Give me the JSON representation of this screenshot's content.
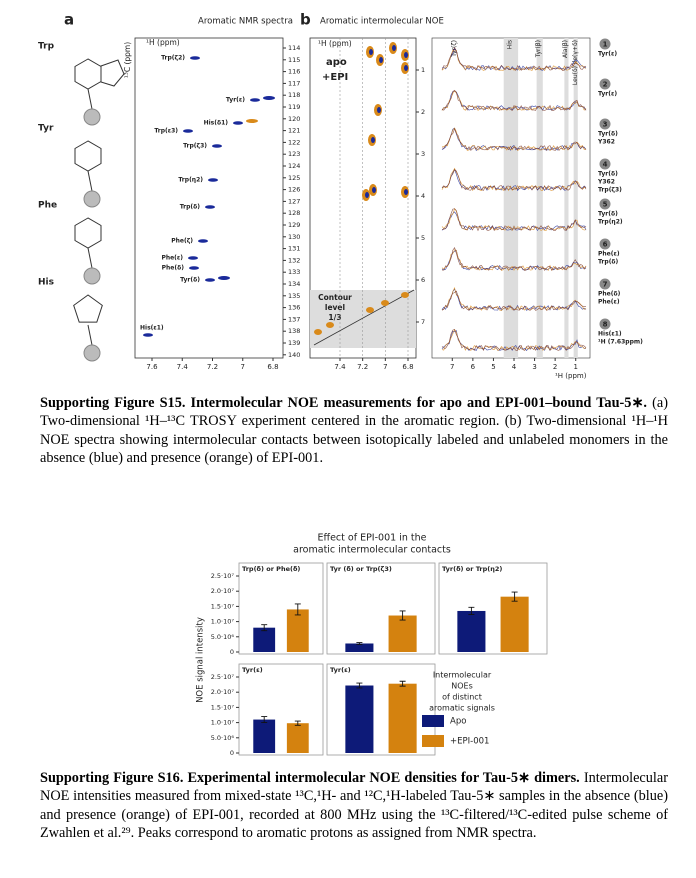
{
  "figure_s15": {
    "panel_a": {
      "label": "a",
      "title": "Aromatic NMR spectra",
      "residues": [
        "Trp",
        "Tyr",
        "Phe",
        "His"
      ],
      "x_axis_label": "¹H (ppm)",
      "y_axis_label": "¹³C (ppm)",
      "xticks": [
        7.6,
        7.4,
        7.2,
        7,
        6.8
      ],
      "yticks": [
        114,
        115,
        116,
        117,
        118,
        119,
        120,
        121,
        122,
        123,
        124,
        125,
        126,
        127,
        128,
        129,
        130,
        131,
        132,
        133,
        134,
        135,
        136,
        137,
        138,
        139,
        140
      ],
      "peaks": [
        "Trp(ζ2)",
        "Tyr(ε)",
        "His(δ1)",
        "Trp(ε3)",
        "Trp(ζ3)",
        "Trp(η2)",
        "Trp(δ)",
        "Phe(ζ)",
        "Phe(ε)",
        "Phe(δ)",
        "Tyr(δ)",
        "His(ε1)"
      ]
    },
    "panel_b": {
      "label": "b",
      "title": "Aromatic intermolecular NOE",
      "y_axis_label": "¹H (ppm)",
      "legend": [
        "apo",
        "+EPI"
      ],
      "contour": [
        "Contour",
        "level",
        "1/3"
      ],
      "xticks": [
        7.4,
        7.2,
        7,
        6.8
      ],
      "yticks": [
        1,
        2,
        3,
        4,
        5,
        6,
        7
      ],
      "trace_xticks": [
        7,
        6,
        5,
        4,
        3,
        2,
        1
      ],
      "trace_x_label": "¹H (ppm)",
      "band_labels": [
        "Tyr(ζ)",
        "His",
        "Tyr(β)",
        "Ala(β)",
        "Leu(δ) Ile(γ+δ)"
      ],
      "traces": [
        {
          "number": "1",
          "label": [
            "Tyr(ε)"
          ]
        },
        {
          "number": "2",
          "label": [
            "Tyr(ε)"
          ]
        },
        {
          "number": "3",
          "label": [
            "Tyr(δ)",
            "Y362"
          ]
        },
        {
          "number": "4",
          "label": [
            "Tyr(δ)",
            "Y362",
            "Trp(ζ3)"
          ]
        },
        {
          "number": "5",
          "label": [
            "Tyr(δ)",
            "Trp(η2)"
          ]
        },
        {
          "number": "6",
          "label": [
            "Phe(ε)",
            "Trp(δ)"
          ]
        },
        {
          "number": "7",
          "label": [
            "Phe(δ)",
            "Phe(ε)"
          ]
        },
        {
          "number": "8",
          "label": [
            "His(ε1)",
            "¹H (7.63ppm)"
          ]
        }
      ]
    }
  },
  "caption_s15": {
    "title": "Supporting Figure S15.  Intermolecular NOE measurements for apo and EPI-001–bound Tau-5∗.",
    "text": "(a) Two-dimensional ¹H–¹³C TROSY experiment centered in the aromatic region. (b) Two-dimensional ¹H–¹H NOE spectra showing intermolecular contacts between isotopically labeled and unlabeled monomers in the absence (blue) and presence (orange) of EPI-001."
  },
  "figure_s16": {
    "type": "bar",
    "title": [
      "Effect of EPI-001 in the",
      "aromatic intermolecular contacts"
    ],
    "ylabel": "NOE signal intensity",
    "ylim": [
      0,
      25000000
    ],
    "yticks": [
      0,
      {
        "value": 5000000,
        "label": "5.0·10⁶"
      },
      {
        "value": 10000000,
        "label": "1.0·10⁷"
      },
      {
        "value": 15000000,
        "label": "1.5·10⁷"
      },
      {
        "value": 20000000,
        "label": "2.0·10⁷"
      },
      {
        "value": 25000000,
        "label": "2.5·10⁷"
      }
    ],
    "legend_title": [
      "Intermolecular",
      "NOEs",
      "of distinct",
      "aromatic signals"
    ],
    "series": [
      {
        "name": "Apo",
        "color": "#0d1a78"
      },
      {
        "name": "+EPI-001",
        "color": "#d4820f"
      }
    ],
    "panels": [
      {
        "title": "Trp(δ) or Phe(δ)",
        "values": [
          8000000,
          14000000
        ],
        "errors": [
          1000000,
          1800000
        ]
      },
      {
        "title": "Tyr (δ) or Trp(ζ3)",
        "values": [
          2800000,
          12000000
        ],
        "errors": [
          300000,
          1500000
        ]
      },
      {
        "title": "Tyr(δ) or Trp(η2)",
        "values": [
          13500000,
          18200000
        ],
        "errors": [
          1200000,
          1500000
        ]
      },
      {
        "title": "Tyr(ε)",
        "values": [
          11000000,
          9800000
        ],
        "errors": [
          1000000,
          700000
        ]
      },
      {
        "title": "Tyr(ε)",
        "values": [
          22200000,
          22800000
        ],
        "errors": [
          800000,
          800000
        ]
      }
    ]
  },
  "caption_s16": {
    "title": "Supporting Figure S16.  Experimental intermolecular NOE densities for Tau-5∗ dimers.",
    "text": "Intermolecular NOE intensities measured from mixed-state ¹³C,¹H- and ¹²C,¹H-labeled Tau-5∗ samples in the absence (blue) and presence (orange) of EPI-001, recorded at 800 MHz using the ¹³C-filtered/¹³C-edited pulse scheme of Zwahlen et al.²⁹. Peaks correspond to aromatic protons as assigned from NMR spectra."
  }
}
